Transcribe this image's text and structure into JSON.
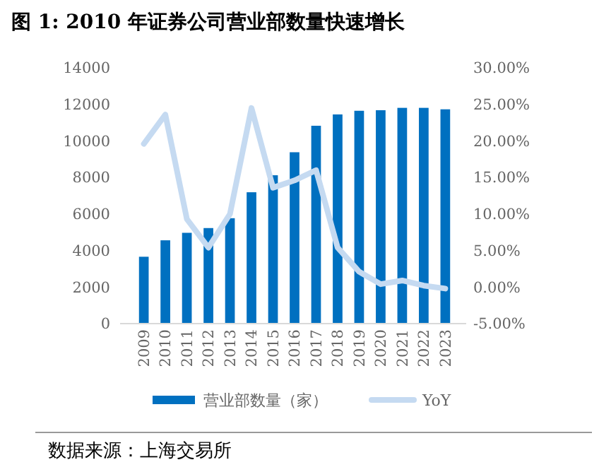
{
  "chart_data": {
    "type": "bar",
    "title": "图 1: 2010 年证券公司营业部数量快速增长",
    "categories": [
      "2009",
      "2010",
      "2011",
      "2012",
      "2013",
      "2014",
      "2015",
      "2016",
      "2017",
      "2018",
      "2019",
      "2020",
      "2021",
      "2022",
      "2023"
    ],
    "series": [
      {
        "name": "营业部数量（家）",
        "color": "#0070c0",
        "values": [
          3660,
          4560,
          4970,
          5230,
          5770,
          7190,
          8120,
          9380,
          10830,
          11450,
          11650,
          11680,
          11810,
          11810,
          11730
        ]
      },
      {
        "name": "YoY",
        "type": "line",
        "axis": "y2",
        "color": "#c5daf1",
        "values": [
          19.6,
          23.6,
          9.3,
          5.4,
          10.0,
          24.5,
          13.6,
          14.6,
          16.0,
          5.4,
          2.1,
          0.4,
          0.9,
          0.2,
          -0.2
        ]
      }
    ],
    "ylim": [
      0,
      14000
    ],
    "yticks": [
      0,
      2000,
      4000,
      6000,
      8000,
      10000,
      12000,
      14000
    ],
    "y2lim": [
      -5,
      30
    ],
    "y2ticks": [
      {
        "value": -5,
        "label": "-5.00%"
      },
      {
        "value": 0,
        "label": "0.00%"
      },
      {
        "value": 5,
        "label": "5.00%"
      },
      {
        "value": 10,
        "label": "10.00%"
      },
      {
        "value": 15,
        "label": "15.00%"
      },
      {
        "value": 20,
        "label": "20.00%"
      },
      {
        "value": 25,
        "label": "25.00%"
      },
      {
        "value": 30,
        "label": "30.00%"
      }
    ],
    "legend": "bottom",
    "grid": false,
    "annotations": [
      "数据来源：上海交易所"
    ]
  }
}
